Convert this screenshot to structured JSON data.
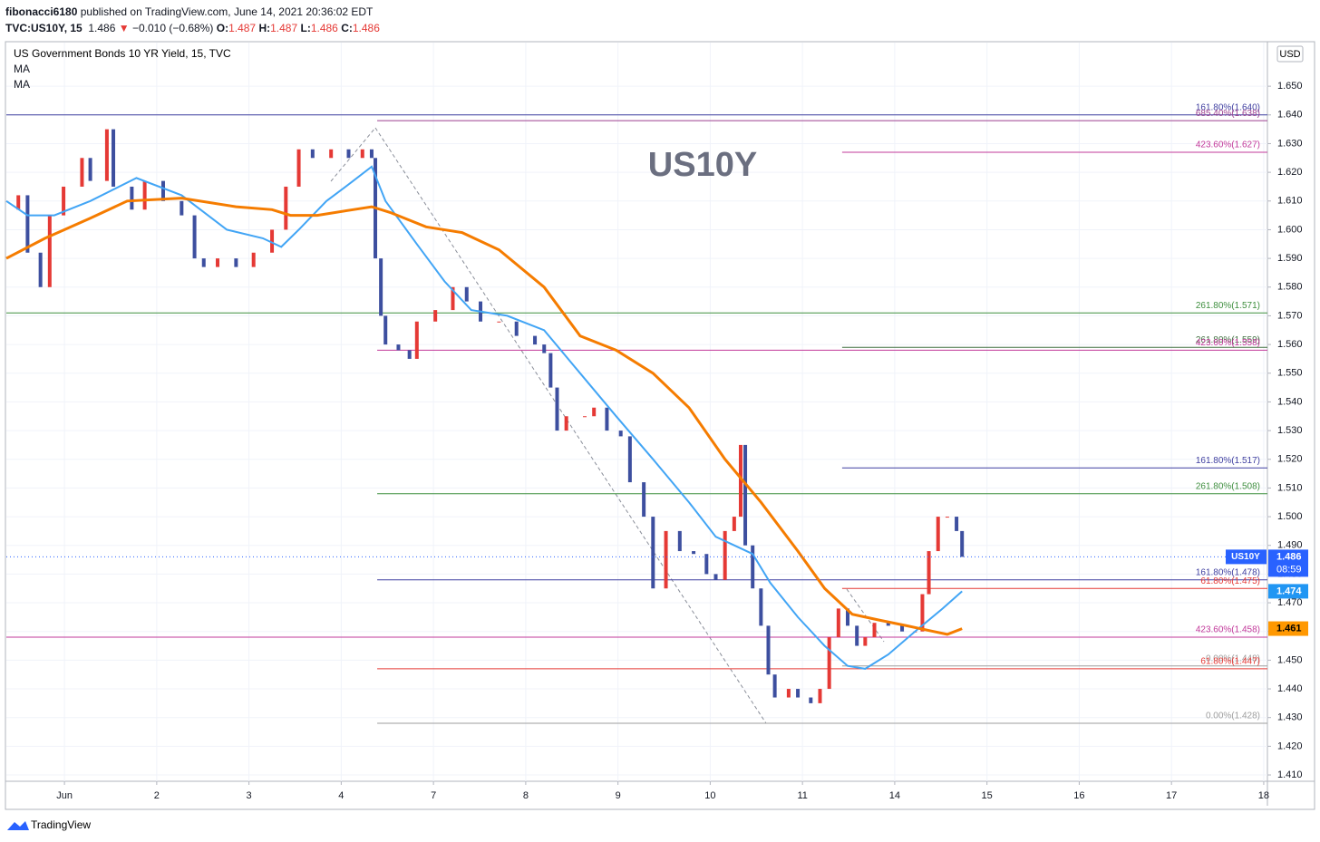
{
  "header": {
    "author": "fibonacci6180",
    "published": "published on TradingView.com, June 14, 2021 20:36:02 EDT",
    "symbol": "TVC:US10Y, 15",
    "last": "1.486",
    "arrow": "▼",
    "change": "−0.010 (−0.68%)",
    "ohlc": [
      {
        "key": "O:",
        "value": "1.487"
      },
      {
        "key": "H:",
        "value": "1.487"
      },
      {
        "key": "L:",
        "value": "1.486"
      },
      {
        "key": "C:",
        "value": "1.486"
      }
    ]
  },
  "legend": {
    "title": "US Government Bonds 10 YR Yield, 15, TVC"
  },
  "currency": "USD",
  "footer": "TradingView",
  "chart_data": {
    "type": "candlestick",
    "xlim": [
      -0.63,
      13.04
    ],
    "ylim": [
      1.4078,
      1.6652
    ],
    "grid": true,
    "xticks": [
      {
        "value": 0,
        "label": "Jun"
      },
      {
        "value": 1,
        "label": "2"
      },
      {
        "value": 2,
        "label": "3"
      },
      {
        "value": 3,
        "label": "4"
      },
      {
        "value": 4,
        "label": "7"
      },
      {
        "value": 5,
        "label": "8"
      },
      {
        "value": 6,
        "label": "9"
      },
      {
        "value": 7,
        "label": "10"
      },
      {
        "value": 8,
        "label": "11"
      },
      {
        "value": 9,
        "label": "14"
      },
      {
        "value": 10,
        "label": "15"
      },
      {
        "value": 11,
        "label": "16"
      },
      {
        "value": 12,
        "label": "17"
      },
      {
        "value": 13,
        "label": "18"
      }
    ],
    "yticks": [
      {
        "value": 1.41,
        "label": "1.410"
      },
      {
        "value": 1.42,
        "label": "1.420"
      },
      {
        "value": 1.43,
        "label": "1.430"
      },
      {
        "value": 1.44,
        "label": "1.440"
      },
      {
        "value": 1.45,
        "label": "1.450"
      },
      {
        "value": 1.46,
        "label": "1.460"
      },
      {
        "value": 1.47,
        "label": "1.470"
      },
      {
        "value": 1.48,
        "label": "1.480"
      },
      {
        "value": 1.49,
        "label": "1.490"
      },
      {
        "value": 1.5,
        "label": "1.500"
      },
      {
        "value": 1.51,
        "label": "1.510"
      },
      {
        "value": 1.52,
        "label": "1.520"
      },
      {
        "value": 1.53,
        "label": "1.530"
      },
      {
        "value": 1.54,
        "label": "1.540"
      },
      {
        "value": 1.55,
        "label": "1.550"
      },
      {
        "value": 1.56,
        "label": "1.560"
      },
      {
        "value": 1.57,
        "label": "1.570"
      },
      {
        "value": 1.58,
        "label": "1.580"
      },
      {
        "value": 1.59,
        "label": "1.590"
      },
      {
        "value": 1.6,
        "label": "1.600"
      },
      {
        "value": 1.61,
        "label": "1.610"
      },
      {
        "value": 1.62,
        "label": "1.620"
      },
      {
        "value": 1.63,
        "label": "1.630"
      },
      {
        "value": 1.64,
        "label": "1.640"
      },
      {
        "value": 1.65,
        "label": "1.650"
      }
    ],
    "series": [
      {
        "name": "US10Y",
        "up_color": "#e53935",
        "down_color": "#3d4f9f",
        "x": [
          -0.63,
          -0.5,
          -0.4,
          -0.26,
          -0.16,
          -0.01,
          0.19,
          0.28,
          0.46,
          0.53,
          0.73,
          0.87,
          1.07,
          1.27,
          1.41,
          1.51,
          1.66,
          1.86,
          2.05,
          2.25,
          2.4,
          2.54,
          2.69,
          2.89,
          3.08,
          3.23,
          3.33,
          3.37,
          3.43,
          3.48,
          3.62,
          3.74,
          3.82,
          4.02,
          4.21,
          4.36,
          4.51,
          4.71,
          4.9,
          5.1,
          5.2,
          5.27,
          5.34,
          5.44,
          5.64,
          5.74,
          5.88,
          6.03,
          6.13,
          6.28,
          6.38,
          6.52,
          6.67,
          6.82,
          6.96,
          7.06,
          7.16,
          7.26,
          7.33,
          7.38,
          7.46,
          7.55,
          7.63,
          7.7,
          7.85,
          7.95,
          8.09,
          8.19,
          8.29,
          8.39,
          8.49,
          8.59,
          8.68,
          8.78,
          8.93,
          9.08,
          9.22,
          9.3,
          9.37,
          9.47,
          9.57,
          9.67,
          9.73
        ],
        "values": [
          1.607,
          1.612,
          1.592,
          1.58,
          1.605,
          1.615,
          1.625,
          1.617,
          1.635,
          1.615,
          1.607,
          1.617,
          1.61,
          1.605,
          1.59,
          1.587,
          1.59,
          1.587,
          1.592,
          1.6,
          1.615,
          1.628,
          1.625,
          1.628,
          1.625,
          1.628,
          1.625,
          1.59,
          1.57,
          1.56,
          1.558,
          1.555,
          1.568,
          1.572,
          1.58,
          1.575,
          1.568,
          1.568,
          1.563,
          1.56,
          1.557,
          1.545,
          1.53,
          1.535,
          1.535,
          1.538,
          1.53,
          1.528,
          1.512,
          1.5,
          1.475,
          1.495,
          1.488,
          1.487,
          1.48,
          1.478,
          1.495,
          1.5,
          1.525,
          1.49,
          1.475,
          1.462,
          1.445,
          1.437,
          1.44,
          1.437,
          1.435,
          1.44,
          1.458,
          1.468,
          1.462,
          1.455,
          1.458,
          1.463,
          1.462,
          1.46,
          1.46,
          1.473,
          1.488,
          1.5,
          1.5,
          1.495,
          1.486
        ]
      },
      {
        "name": "MA",
        "color": "#42a5f5",
        "x": [
          -0.63,
          -0.4,
          -0.11,
          0.28,
          0.78,
          1.27,
          1.76,
          2.15,
          2.35,
          2.54,
          2.84,
          3.13,
          3.33,
          3.48,
          3.82,
          4.12,
          4.41,
          4.8,
          5.2,
          5.59,
          5.98,
          6.38,
          6.77,
          7.06,
          7.26,
          7.46,
          7.65,
          7.95,
          8.24,
          8.49,
          8.68,
          8.93,
          9.22,
          9.52,
          9.73
        ],
        "values": [
          1.61,
          1.605,
          1.605,
          1.61,
          1.618,
          1.612,
          1.6,
          1.597,
          1.594,
          1.6,
          1.61,
          1.617,
          1.622,
          1.61,
          1.595,
          1.582,
          1.572,
          1.57,
          1.565,
          1.55,
          1.535,
          1.52,
          1.505,
          1.493,
          1.49,
          1.487,
          1.477,
          1.465,
          1.455,
          1.448,
          1.447,
          1.452,
          1.46,
          1.468,
          1.474
        ]
      },
      {
        "name": "MA",
        "color": "#f57c00",
        "x": [
          -0.63,
          -0.21,
          0.28,
          0.68,
          1.27,
          1.86,
          2.25,
          2.45,
          2.74,
          3.13,
          3.33,
          3.53,
          3.92,
          4.31,
          4.71,
          5.2,
          5.59,
          5.98,
          6.38,
          6.77,
          7.16,
          7.55,
          7.95,
          8.24,
          8.54,
          8.83,
          9.13,
          9.42,
          9.57,
          9.73
        ],
        "values": [
          1.59,
          1.597,
          1.604,
          1.61,
          1.611,
          1.608,
          1.607,
          1.605,
          1.605,
          1.607,
          1.608,
          1.606,
          1.601,
          1.599,
          1.593,
          1.58,
          1.563,
          1.558,
          1.55,
          1.538,
          1.52,
          1.505,
          1.488,
          1.475,
          1.466,
          1.464,
          1.462,
          1.46,
          1.459,
          1.461
        ]
      }
    ],
    "levels": [
      {
        "value": 1.64,
        "label": "161.80%(1.640)",
        "color": "#3f3fa0",
        "start": -0.63
      },
      {
        "value": 1.638,
        "label": "685.40%(1.638)",
        "color": "#9c3f8f",
        "start": 3.39
      },
      {
        "value": 1.627,
        "label": "423.60%(1.627)",
        "color": "#c2389a",
        "start": 8.43
      },
      {
        "value": 1.571,
        "label": "261.80%(1.571)",
        "color": "#3f8f3f",
        "start": -0.63
      },
      {
        "value": 1.559,
        "label": "261.80%(1.559)",
        "color": "#3f6f3f",
        "start": 8.43
      },
      {
        "value": 1.558,
        "label": "423.60%(1.558)",
        "color": "#c2389a",
        "start": 3.39
      },
      {
        "value": 1.517,
        "label": "161.80%(1.517)",
        "color": "#3f3fa0",
        "start": 8.43
      },
      {
        "value": 1.508,
        "label": "261.80%(1.508)",
        "color": "#3f8f3f",
        "start": 3.39
      },
      {
        "value": 1.478,
        "label": "161.80%(1.478)",
        "color": "#3f3fa0",
        "start": 3.39
      },
      {
        "value": 1.475,
        "label": "61.80%(1.475)",
        "color": "#e53935",
        "start": 8.43
      },
      {
        "value": 1.458,
        "label": "423.60%(1.458)",
        "color": "#c2389a",
        "start": -0.63
      },
      {
        "value": 1.448,
        "label": "0.00%(1.448)",
        "color": "#9e9e9e",
        "start": 8.43
      },
      {
        "value": 1.447,
        "label": "61.80%(1.447)",
        "color": "#e53935",
        "start": 3.39
      },
      {
        "value": 1.428,
        "label": "0.00%(1.428)",
        "color": "#9e9e9e",
        "start": 3.39
      }
    ],
    "price_tags": [
      {
        "value": 1.486,
        "label": "1.486",
        "timer": "08:59",
        "color": "#2962ff"
      },
      {
        "value": 1.474,
        "label": "1.474",
        "color": "#2196f3"
      },
      {
        "value": 1.461,
        "label": "1.461",
        "color": "#ff9800"
      }
    ]
  }
}
